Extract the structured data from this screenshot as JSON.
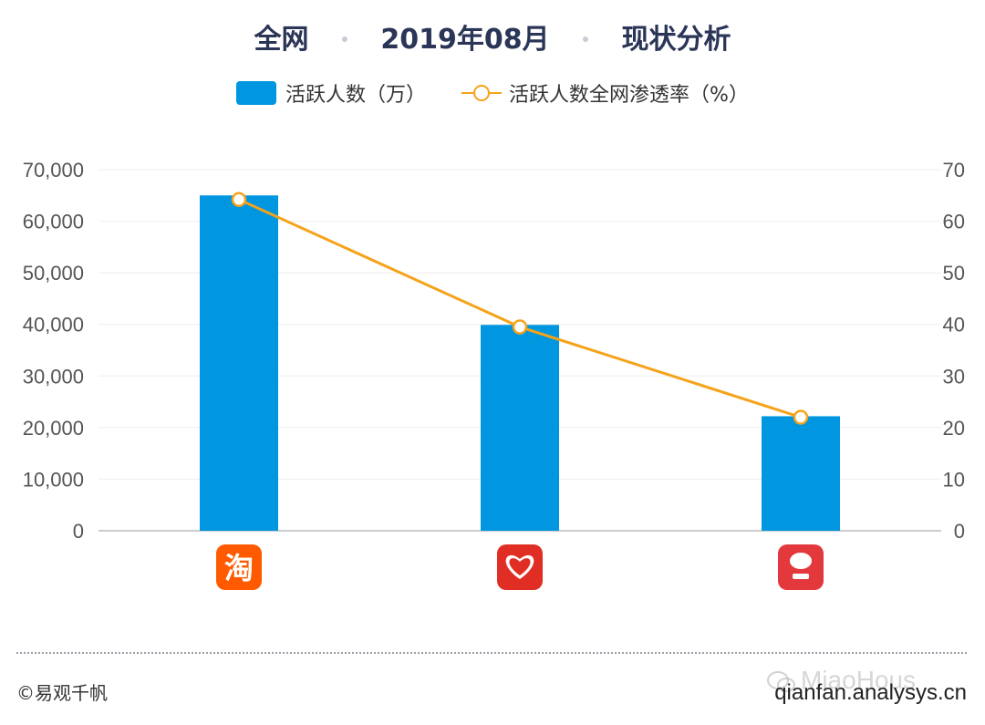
{
  "header": {
    "part1": "全网",
    "part2": "2019年08月",
    "part3": "现状分析"
  },
  "legend": {
    "bars_label": "活跃人数（万）",
    "line_label": "活跃人数全网渗透率（%）"
  },
  "colors": {
    "bar": "#0096e0",
    "line": "#f5a31a",
    "title": "#2a3557",
    "grid": "#eeeeee",
    "axis": "#cccccc",
    "tick": "#555555"
  },
  "chart_data": {
    "type": "bar",
    "categories": [
      "淘宝",
      "拼多多",
      "京东"
    ],
    "category_icons": [
      "taobao-app-icon",
      "pinduoduo-app-icon",
      "jd-app-icon"
    ],
    "series": [
      {
        "name": "活跃人数（万）",
        "type": "bar",
        "axis": "left",
        "values": [
          65000,
          39900,
          22200
        ]
      },
      {
        "name": "活跃人数全网渗透率（%）",
        "type": "line",
        "axis": "right",
        "values": [
          64.2,
          39.5,
          22.0
        ]
      }
    ],
    "ylim_left": [
      0,
      70000
    ],
    "ylim_right": [
      0,
      70
    ],
    "yticks_left": [
      "0",
      "10,000",
      "20,000",
      "30,000",
      "40,000",
      "50,000",
      "60,000",
      "70,000"
    ],
    "yticks_right": [
      "0",
      "10",
      "20",
      "30",
      "40",
      "50",
      "60",
      "70"
    ],
    "grid": true,
    "legend_position": "top"
  },
  "footer": {
    "copyright": "©易观千帆",
    "site": "qianfan.analysys.cn",
    "watermark": "MiaoHous"
  }
}
